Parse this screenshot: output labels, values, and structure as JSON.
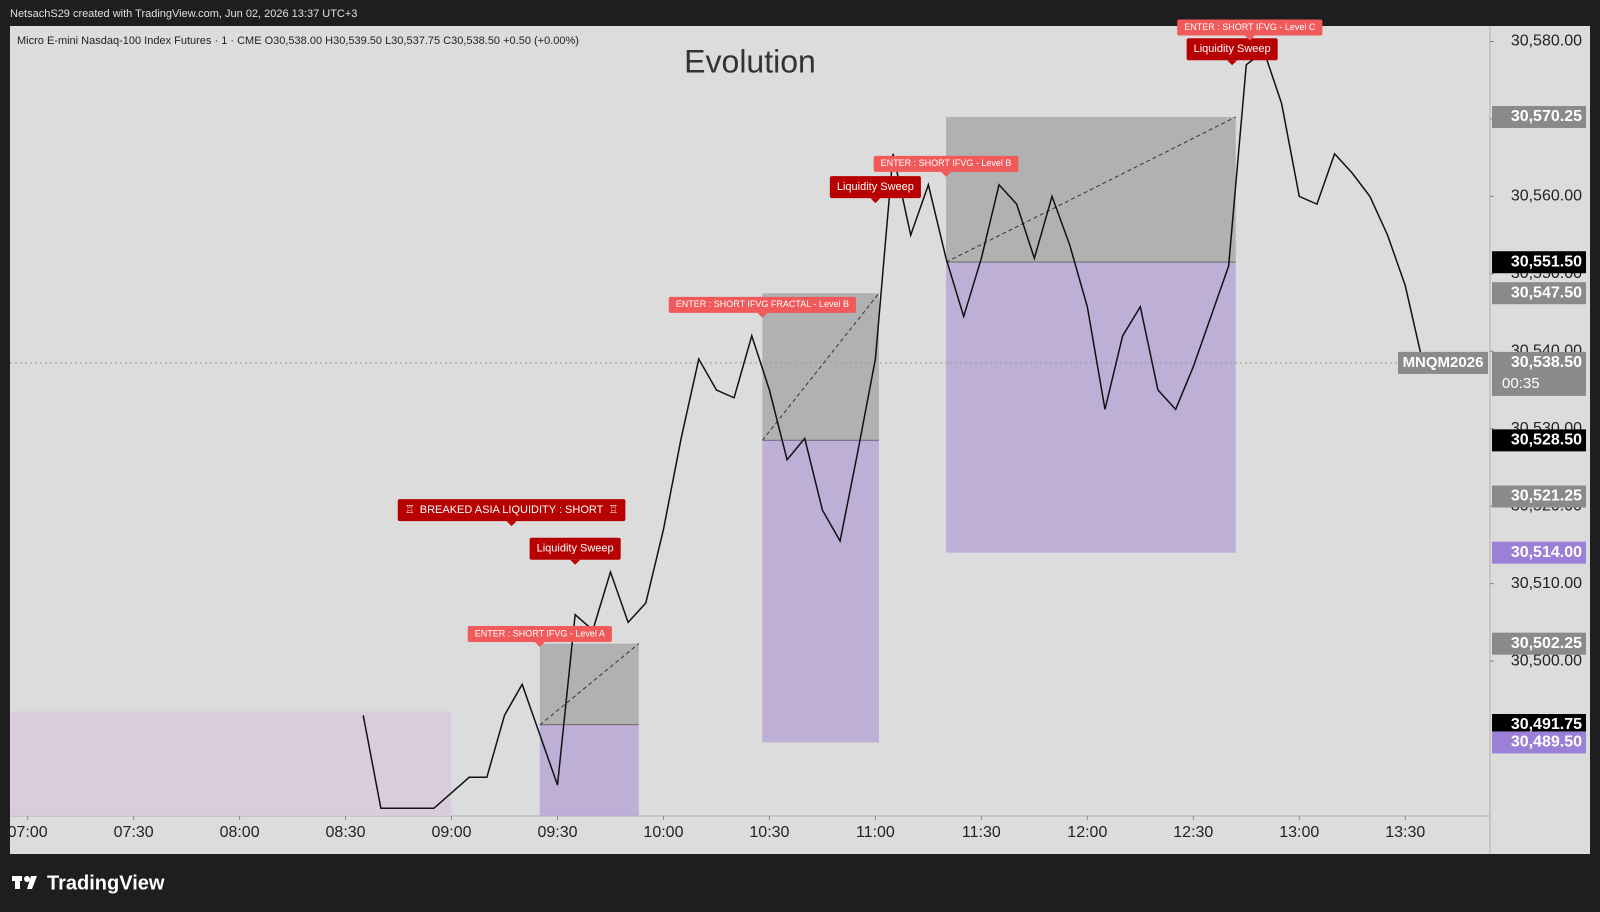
{
  "header": {
    "credit": "NetsachS29 created with TradingView.com, Jun 02, 2026 13:37 UTC+3"
  },
  "footer": {
    "brand": "TradingView"
  },
  "chart_data": {
    "type": "line",
    "title": "Evolution",
    "legend_line": "Micro E-mini Nasdaq-100 Index Futures · 1 · CME  O30,538.00  H30,539.50  L30,537.75  C30,538.50  +0.50 (+0.00%)",
    "color": "#111111",
    "x": [
      "08:35",
      "08:40",
      "08:45",
      "08:50",
      "08:55",
      "09:00",
      "09:05",
      "09:10",
      "09:15",
      "09:20",
      "09:25",
      "09:30",
      "09:35",
      "09:40",
      "09:45",
      "09:50",
      "09:55",
      "10:00",
      "10:05",
      "10:10",
      "10:15",
      "10:20",
      "10:25",
      "10:30",
      "10:35",
      "10:40",
      "10:45",
      "10:50",
      "10:55",
      "11:00",
      "11:05",
      "11:10",
      "11:15",
      "11:20",
      "11:25",
      "11:30",
      "11:35",
      "11:40",
      "11:45",
      "11:50",
      "11:55",
      "12:00",
      "12:05",
      "12:10",
      "12:15",
      "12:20",
      "12:25",
      "12:30",
      "12:35",
      "12:40",
      "12:45",
      "12:50",
      "12:55",
      "13:00",
      "13:05",
      "13:10",
      "13:15",
      "13:20",
      "13:25",
      "13:30",
      "13:35"
    ],
    "values": [
      30493,
      30481,
      30481,
      30481,
      30481,
      30483,
      30485,
      30485,
      30493,
      30497,
      30490.5,
      30484,
      30506,
      30504,
      30511.5,
      30505,
      30507.5,
      30517,
      30528.75,
      30539,
      30535,
      30534,
      30542,
      30535,
      30526,
      30528.75,
      30519.5,
      30515.5,
      30527,
      30539,
      30565.5,
      30555,
      30561.5,
      30552,
      30544.5,
      30552,
      30561.5,
      30559,
      30552,
      30560,
      30553.75,
      30545.75,
      30532.5,
      30542,
      30545.75,
      30535,
      30532.5,
      30538,
      30544.5,
      30551,
      30577,
      30578.75,
      30572,
      30560,
      30559,
      30565.5,
      30563,
      30560,
      30555,
      30548.5,
      30538.5
    ],
    "xlim": [
      "06:55",
      "13:54"
    ],
    "xticks": [
      "07:00",
      "07:30",
      "08:00",
      "08:30",
      "09:00",
      "09:30",
      "10:00",
      "10:30",
      "11:00",
      "11:30",
      "12:00",
      "12:30",
      "13:00",
      "13:30"
    ],
    "ylim": [
      30480,
      30582
    ],
    "yticks": [
      {
        "value": 30500,
        "label": "30,500.00"
      },
      {
        "value": 30510,
        "label": "30,510.00"
      },
      {
        "value": 30520,
        "label": "30,520.00"
      },
      {
        "value": 30530,
        "label": "30,530.00"
      },
      {
        "value": 30540,
        "label": "30,540.00"
      },
      {
        "value": 30550,
        "label": "30,550.00"
      },
      {
        "value": 30560,
        "label": "30,560.00"
      },
      {
        "value": 30570,
        "label": "30,570.00"
      },
      {
        "value": 30580,
        "label": "30,580.00"
      }
    ],
    "zones": [
      {
        "start": "06:55",
        "end": "09:00",
        "top": 30493.5,
        "bottom": 30480,
        "color": "#d9c9dd"
      },
      {
        "start": "09:25",
        "end": "09:53",
        "top": 30502.25,
        "bottom": 30491.75,
        "color": "#a9a9a9"
      },
      {
        "start": "09:25",
        "end": "09:53",
        "top": 30491.75,
        "bottom": 30480,
        "color": "#b9a7d6"
      },
      {
        "start": "10:28",
        "end": "11:01",
        "top": 30547.5,
        "bottom": 30528.5,
        "color": "#a9a9a9"
      },
      {
        "start": "10:28",
        "end": "11:01",
        "top": 30528.5,
        "bottom": 30489.5,
        "color": "#b9a7d6"
      },
      {
        "start": "11:20",
        "end": "12:42",
        "top": 30570.25,
        "bottom": 30551.5,
        "color": "#a9a9a9"
      },
      {
        "start": "11:20",
        "end": "12:42",
        "top": 30551.5,
        "bottom": 30514,
        "color": "#b9a7d6"
      }
    ],
    "annotations": [
      {
        "text": "ENTER : SHORT IFVG - Level A",
        "time": "09:25",
        "price": 30503.5,
        "color": "#f05a5a"
      },
      {
        "text": "Liquidity Sweep",
        "time": "09:35",
        "price": 30514.5,
        "color": "#b80000"
      },
      {
        "text": "BREAKED ASIA LIQUIDITY : SHORT",
        "time": "09:17",
        "price": 30519.5,
        "color": "#b80000"
      },
      {
        "text": "ENTER : SHORT IFVG FRACTAL - Level B",
        "time": "10:28",
        "price": 30546,
        "color": "#f05a5a"
      },
      {
        "text": "Liquidity Sweep",
        "time": "11:00",
        "price": 30561.2,
        "color": "#b80000"
      },
      {
        "text": "ENTER : SHORT IFVG - Level B",
        "time": "11:20",
        "price": 30564.2,
        "color": "#f05a5a"
      },
      {
        "text": "Liquidity Sweep",
        "time": "12:41",
        "price": 30579,
        "color": "#b80000"
      },
      {
        "text": "ENTER : SHORT IFVG - Level C",
        "time": "12:46",
        "price": 30581.8,
        "color": "#f05a5a"
      }
    ],
    "current_price": {
      "value": 30538.5,
      "label": "30,538.50",
      "symbol": "MNQM2026",
      "countdown": "00:35",
      "color": "#8a8a8a"
    },
    "price_labels": [
      {
        "value": 30570.25,
        "label": "30,570.25",
        "color": "#8a8a8a"
      },
      {
        "value": 30551.5,
        "label": "30,551.50",
        "color": "#000000"
      },
      {
        "value": 30547.5,
        "label": "30,547.50",
        "color": "#8a8a8a"
      },
      {
        "value": 30528.5,
        "label": "30,528.50",
        "color": "#000000"
      },
      {
        "value": 30521.25,
        "label": "30,521.25",
        "color": "#8a8a8a"
      },
      {
        "value": 30514,
        "label": "30,514.00",
        "color": "#9c7fd6"
      },
      {
        "value": 30502.25,
        "label": "30,502.25",
        "color": "#8a8a8a"
      },
      {
        "value": 30491.75,
        "label": "30,491.75",
        "color": "#000000"
      },
      {
        "value": 30489.5,
        "label": "30,489.50",
        "color": "#9c7fd6"
      }
    ]
  }
}
